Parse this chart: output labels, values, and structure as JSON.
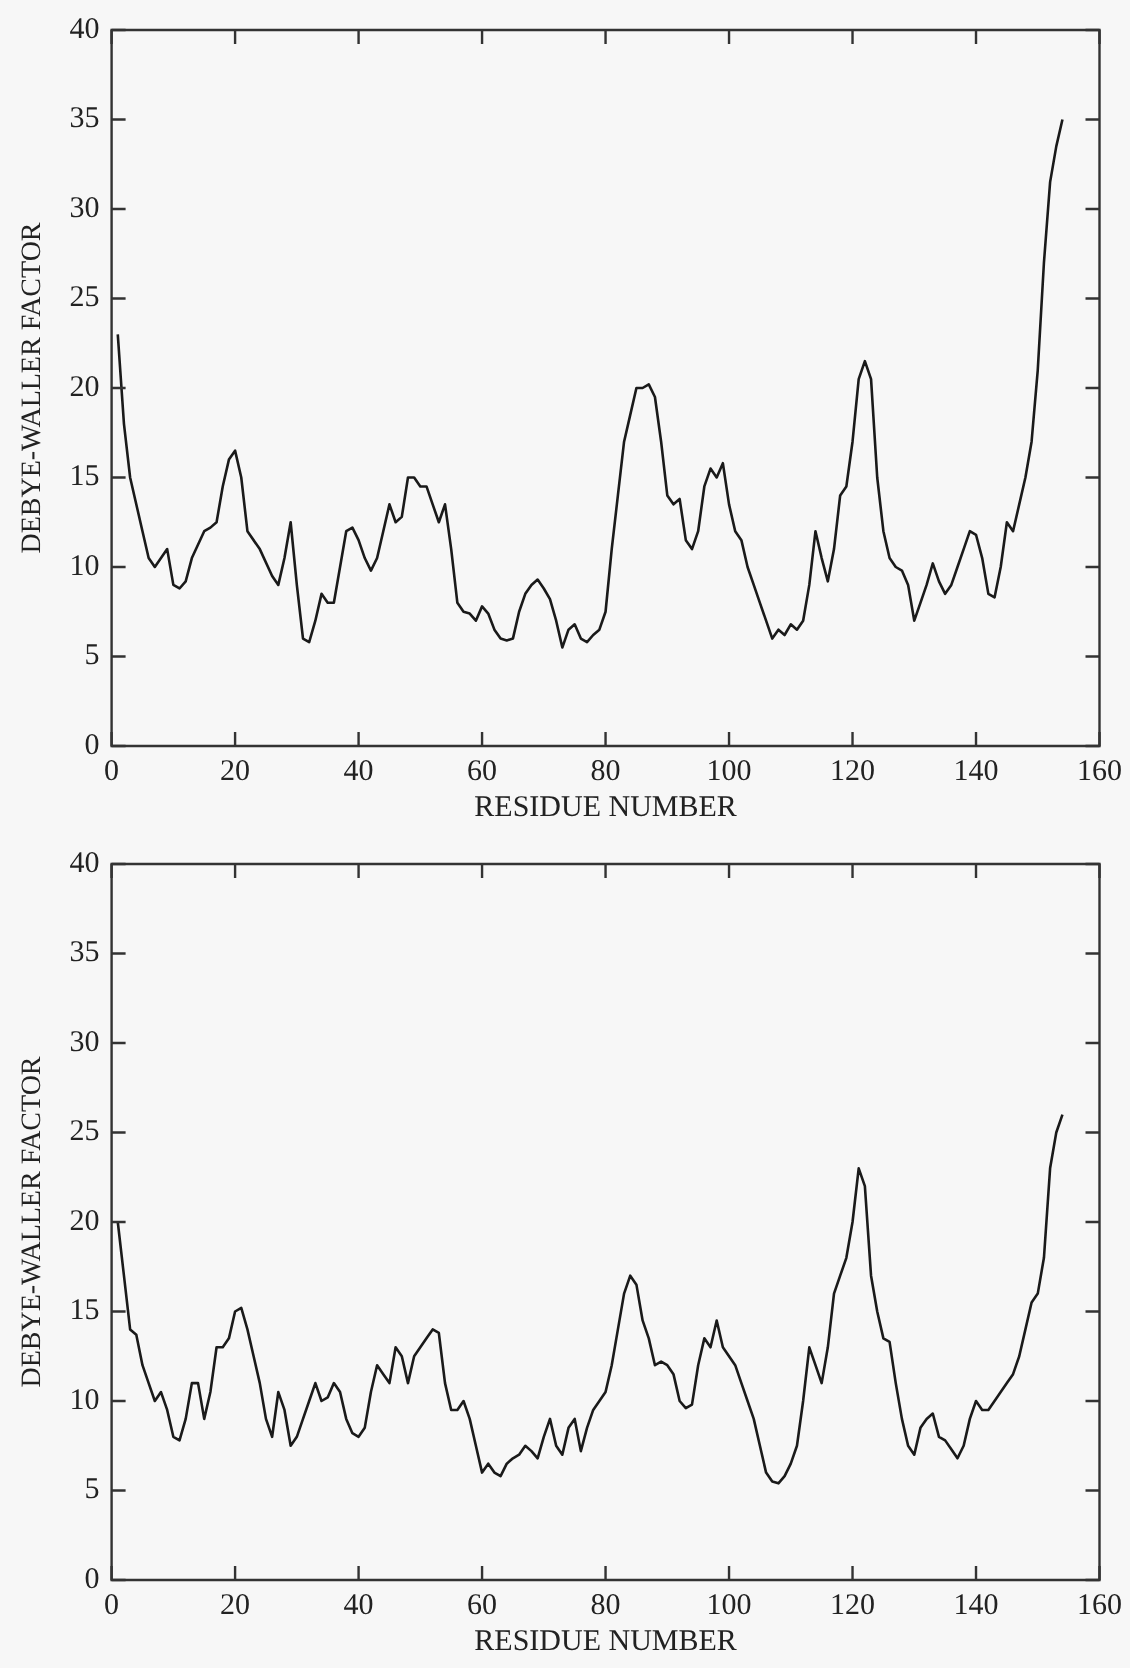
{
  "chart_data": [
    {
      "type": "line",
      "xlabel": "RESIDUE NUMBER",
      "ylabel": "DEBYE-WALLER FACTOR",
      "xlim": [
        0,
        160
      ],
      "ylim": [
        0,
        40
      ],
      "xticks": [
        0,
        20,
        40,
        60,
        80,
        100,
        120,
        140,
        160
      ],
      "yticks": [
        0,
        5,
        10,
        15,
        20,
        25,
        30,
        35,
        40
      ],
      "grid": false,
      "legend": false,
      "series": [
        {
          "color": "#1a1a1a",
          "x": [
            1,
            2,
            3,
            5,
            6,
            7,
            8,
            9,
            10,
            11,
            12,
            13,
            15,
            16,
            17,
            18,
            19,
            20,
            21,
            22,
            24,
            26,
            27,
            28,
            29,
            30,
            31,
            32,
            33,
            34,
            35,
            36,
            37,
            38,
            39,
            40,
            41,
            42,
            43,
            44,
            45,
            46,
            47,
            48,
            49,
            50,
            51,
            52,
            53,
            54,
            55,
            56,
            57,
            58,
            59,
            60,
            61,
            62,
            63,
            64,
            65,
            66,
            67,
            68,
            69,
            70,
            71,
            72,
            73,
            74,
            75,
            76,
            77,
            78,
            79,
            80,
            81,
            82,
            83,
            84,
            85,
            86,
            87,
            88,
            89,
            90,
            91,
            92,
            93,
            94,
            95,
            96,
            97,
            98,
            99,
            100,
            101,
            102,
            103,
            104,
            105,
            106,
            107,
            108,
            109,
            110,
            111,
            112,
            113,
            114,
            115,
            116,
            117,
            118,
            119,
            120,
            121,
            122,
            123,
            124,
            125,
            126,
            127,
            128,
            129,
            130,
            131,
            132,
            133,
            134,
            135,
            136,
            137,
            138,
            139,
            140,
            141,
            142,
            143,
            144,
            145,
            146,
            147,
            148,
            149,
            150,
            151,
            152,
            153,
            154
          ],
          "values": [
            23,
            18,
            15,
            12,
            10.5,
            10,
            10.5,
            11,
            9,
            8.8,
            9.2,
            10.5,
            12,
            12.2,
            12.5,
            14.5,
            16,
            16.5,
            15,
            12,
            11,
            9.5,
            9,
            10.5,
            12.5,
            9,
            6,
            5.8,
            7,
            8.5,
            8,
            8,
            10,
            12,
            12.2,
            11.5,
            10.5,
            9.8,
            10.5,
            12,
            13.5,
            12.5,
            12.8,
            15,
            15,
            14.5,
            14.5,
            13.5,
            12.5,
            13.5,
            11,
            8,
            7.5,
            7.4,
            7,
            7.8,
            7.4,
            6.5,
            6,
            5.9,
            6,
            7.5,
            8.5,
            9,
            9.3,
            8.8,
            8.2,
            7,
            5.5,
            6.5,
            6.8,
            6,
            5.8,
            6.2,
            6.5,
            7.5,
            11,
            14,
            17,
            18.5,
            20,
            20,
            20.2,
            19.5,
            17,
            14,
            13.5,
            13.8,
            11.5,
            11,
            12,
            14.5,
            15.5,
            15,
            15.8,
            13.5,
            12,
            11.5,
            10,
            9,
            8,
            7,
            6,
            6.5,
            6.2,
            6.8,
            6.5,
            7,
            9,
            12,
            10.5,
            9.2,
            11,
            14,
            14.5,
            17,
            20.5,
            21.5,
            20.5,
            15,
            12,
            10.5,
            10,
            9.8,
            9,
            7,
            8,
            9,
            10.2,
            9.2,
            8.5,
            9,
            10,
            11,
            12,
            11.8,
            10.5,
            8.5,
            8.3,
            10,
            12.5,
            12,
            13.5,
            15,
            17,
            21,
            27,
            31.5,
            33.5,
            35
          ]
        }
      ]
    },
    {
      "type": "line",
      "xlabel": "RESIDUE NUMBER",
      "ylabel": "DEBYE-WALLER FACTOR",
      "xlim": [
        0,
        160
      ],
      "ylim": [
        0,
        40
      ],
      "xticks": [
        0,
        20,
        40,
        60,
        80,
        100,
        120,
        140,
        160
      ],
      "yticks": [
        0,
        5,
        10,
        15,
        20,
        25,
        30,
        35,
        40
      ],
      "grid": false,
      "legend": false,
      "series": [
        {
          "color": "#1a1a1a",
          "x": [
            1,
            2,
            3,
            4,
            5,
            6,
            7,
            8,
            9,
            10,
            11,
            12,
            13,
            14,
            15,
            16,
            17,
            18,
            19,
            20,
            21,
            22,
            23,
            24,
            25,
            26,
            27,
            28,
            29,
            30,
            31,
            32,
            33,
            34,
            35,
            36,
            37,
            38,
            39,
            40,
            41,
            42,
            43,
            44,
            45,
            46,
            47,
            48,
            49,
            50,
            51,
            52,
            53,
            54,
            55,
            56,
            57,
            58,
            59,
            60,
            61,
            62,
            63,
            64,
            65,
            66,
            67,
            68,
            69,
            70,
            71,
            72,
            73,
            74,
            75,
            76,
            77,
            78,
            79,
            80,
            81,
            82,
            83,
            84,
            85,
            86,
            87,
            88,
            89,
            90,
            91,
            92,
            93,
            94,
            95,
            96,
            97,
            98,
            99,
            100,
            101,
            102,
            103,
            104,
            105,
            106,
            107,
            108,
            109,
            110,
            111,
            112,
            113,
            114,
            115,
            116,
            117,
            118,
            119,
            120,
            121,
            122,
            123,
            124,
            125,
            126,
            127,
            128,
            129,
            130,
            131,
            132,
            133,
            134,
            135,
            136,
            137,
            138,
            139,
            140,
            141,
            142,
            143,
            144,
            145,
            146,
            147,
            148,
            149,
            150,
            151,
            152,
            153,
            154
          ],
          "values": [
            20,
            17,
            14,
            13.7,
            12,
            11,
            10,
            10.5,
            9.5,
            8,
            7.8,
            9,
            11,
            11,
            9,
            10.5,
            13,
            13,
            13.5,
            15,
            15.2,
            14,
            12.5,
            11,
            9,
            8,
            10.5,
            9.5,
            7.5,
            8,
            9,
            10,
            11,
            10,
            10.2,
            11,
            10.5,
            9,
            8.2,
            8,
            8.5,
            10.5,
            12,
            11.5,
            11,
            13,
            12.5,
            11,
            12.5,
            13,
            13.5,
            14,
            13.8,
            11,
            9.5,
            9.5,
            10,
            9,
            7.5,
            6,
            6.5,
            6,
            5.8,
            6.5,
            6.8,
            7,
            7.5,
            7.2,
            6.8,
            8,
            9,
            7.5,
            7,
            8.5,
            9,
            7.2,
            8.5,
            9.5,
            10,
            10.5,
            12,
            14,
            16,
            17,
            16.5,
            14.5,
            13.5,
            12,
            12.2,
            12,
            11.5,
            10,
            9.6,
            9.8,
            12,
            13.5,
            13,
            14.5,
            13,
            12.5,
            12,
            11,
            10,
            9,
            7.5,
            6,
            5.5,
            5.4,
            5.8,
            6.5,
            7.5,
            10,
            13,
            12,
            11,
            13,
            16,
            17,
            18,
            20,
            23,
            22,
            17,
            15,
            13.5,
            13.3,
            11,
            9,
            7.5,
            7,
            8.5,
            9,
            9.3,
            8,
            7.8,
            7.3,
            6.8,
            7.5,
            9,
            10,
            9.5,
            9.5,
            10,
            10.5,
            11,
            11.5,
            12.5,
            14,
            15.5,
            16,
            18,
            23,
            25,
            26
          ]
        }
      ]
    }
  ]
}
